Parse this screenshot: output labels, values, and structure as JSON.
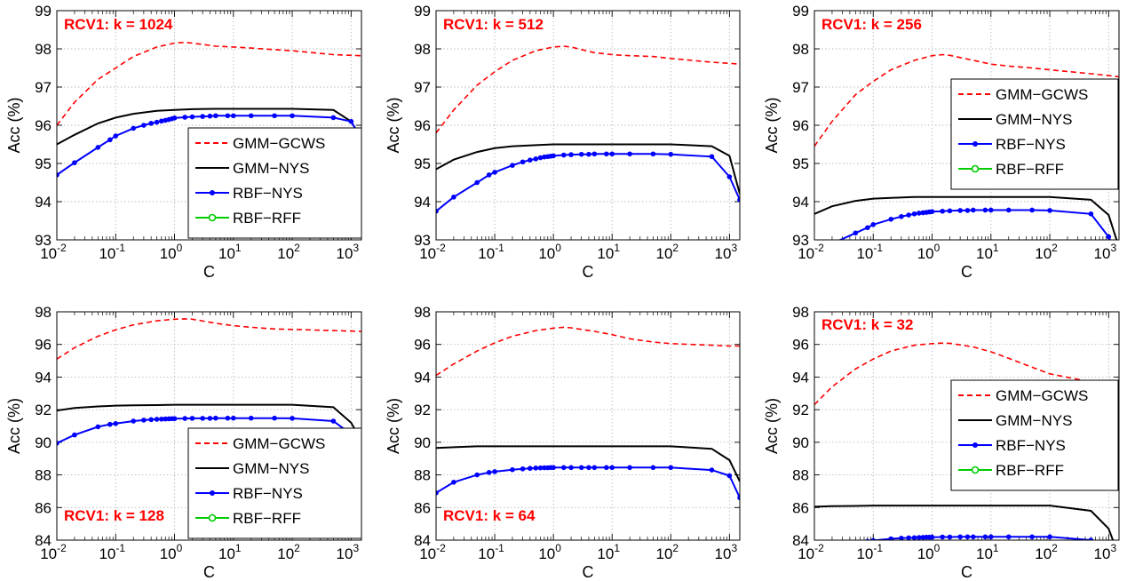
{
  "xlabel": "C",
  "ylabel": "Acc (%)",
  "x_ticks": [
    "-2",
    "-1",
    "0",
    "1",
    "2",
    "3"
  ],
  "x_tick_base": "10",
  "series_styles": [
    {
      "name": "GMM−GCWS",
      "color": "#ff0000",
      "dash": "dashed",
      "marker": "none"
    },
    {
      "name": "GMM−NYS",
      "color": "#000000",
      "dash": "solid",
      "marker": "none"
    },
    {
      "name": "RBF−NYS",
      "color": "#0000ff",
      "dash": "solid",
      "marker": "dot"
    },
    {
      "name": "RBF−RFF",
      "color": "#00cc00",
      "dash": "solid",
      "marker": "circle"
    }
  ],
  "chart_data": [
    {
      "type": "line",
      "title": "RCV1: k = 1024",
      "xlabel": "C",
      "ylabel": "Acc (%)",
      "xscale": "log",
      "xlim": [
        0.01,
        1500
      ],
      "ylim": [
        93,
        99
      ],
      "yticks": [
        93,
        94,
        95,
        96,
        97,
        98,
        99
      ],
      "legend": "lower-right",
      "grid": true,
      "series": [
        {
          "name": "GMM−GCWS",
          "x": [
            0.01,
            0.02,
            0.05,
            0.1,
            0.2,
            0.5,
            1,
            1.5,
            2,
            5,
            10,
            20,
            50,
            100,
            500,
            1000,
            1500
          ],
          "y": [
            96.0,
            96.6,
            97.2,
            97.5,
            97.8,
            98.05,
            98.15,
            98.17,
            98.15,
            98.07,
            98.05,
            98.02,
            97.98,
            97.95,
            97.85,
            97.83,
            97.82
          ]
        },
        {
          "name": "GMM−NYS",
          "x": [
            0.01,
            0.02,
            0.05,
            0.1,
            0.2,
            0.5,
            1,
            2,
            5,
            10,
            20,
            50,
            100,
            500,
            1000,
            1500
          ],
          "y": [
            95.5,
            95.75,
            96.05,
            96.2,
            96.3,
            96.38,
            96.4,
            96.42,
            96.43,
            96.43,
            96.43,
            96.43,
            96.43,
            96.4,
            96.1,
            95.65
          ]
        },
        {
          "name": "RBF−NYS",
          "x": [
            0.01,
            0.02,
            0.05,
            0.08,
            0.1,
            0.2,
            0.3,
            0.4,
            0.5,
            0.6,
            0.7,
            0.8,
            0.9,
            1,
            1.5,
            2,
            3,
            4,
            5,
            8,
            10,
            20,
            50,
            100,
            500,
            1000,
            1500
          ],
          "y": [
            94.7,
            95.02,
            95.42,
            95.62,
            95.72,
            95.92,
            96.0,
            96.05,
            96.08,
            96.11,
            96.13,
            96.15,
            96.17,
            96.19,
            96.21,
            96.22,
            96.23,
            96.24,
            96.25,
            96.25,
            96.25,
            96.25,
            96.25,
            96.25,
            96.2,
            96.1,
            95.65
          ]
        },
        {
          "name": "RBF−RFF",
          "x": [],
          "y": []
        }
      ]
    },
    {
      "type": "line",
      "title": "RCV1: k = 512",
      "xlabel": "C",
      "ylabel": "Acc (%)",
      "xscale": "log",
      "xlim": [
        0.01,
        1500
      ],
      "ylim": [
        93,
        99
      ],
      "yticks": [
        93,
        94,
        95,
        96,
        97,
        98,
        99
      ],
      "legend": "none",
      "grid": true,
      "series": [
        {
          "name": "GMM−GCWS",
          "x": [
            0.01,
            0.02,
            0.05,
            0.1,
            0.2,
            0.5,
            1,
            1.5,
            2,
            5,
            10,
            20,
            50,
            100,
            500,
            1000,
            1500
          ],
          "y": [
            95.8,
            96.4,
            97.05,
            97.4,
            97.7,
            97.95,
            98.05,
            98.07,
            98.05,
            97.9,
            97.85,
            97.82,
            97.8,
            97.75,
            97.65,
            97.62,
            97.6
          ]
        },
        {
          "name": "GMM−NYS",
          "x": [
            0.01,
            0.02,
            0.05,
            0.1,
            0.2,
            0.5,
            1,
            2,
            5,
            10,
            20,
            50,
            100,
            500,
            1000,
            1500
          ],
          "y": [
            94.85,
            95.1,
            95.3,
            95.4,
            95.45,
            95.48,
            95.5,
            95.5,
            95.5,
            95.5,
            95.5,
            95.5,
            95.5,
            95.45,
            95.2,
            94.2
          ]
        },
        {
          "name": "RBF−NYS",
          "x": [
            0.01,
            0.02,
            0.05,
            0.08,
            0.1,
            0.2,
            0.3,
            0.4,
            0.5,
            0.6,
            0.7,
            0.8,
            0.9,
            1,
            1.5,
            2,
            3,
            4,
            5,
            8,
            10,
            20,
            50,
            100,
            500,
            1000,
            1500
          ],
          "y": [
            93.75,
            94.12,
            94.5,
            94.7,
            94.77,
            94.95,
            95.04,
            95.09,
            95.12,
            95.15,
            95.17,
            95.18,
            95.19,
            95.2,
            95.22,
            95.23,
            95.24,
            95.24,
            95.25,
            95.25,
            95.25,
            95.25,
            95.25,
            95.24,
            95.18,
            94.65,
            94.05
          ]
        },
        {
          "name": "RBF−RFF",
          "x": [],
          "y": []
        }
      ]
    },
    {
      "type": "line",
      "title": "RCV1: k = 256",
      "xlabel": "C",
      "ylabel": "Acc (%)",
      "xscale": "log",
      "xlim": [
        0.01,
        1500
      ],
      "ylim": [
        93,
        99
      ],
      "yticks": [
        93,
        94,
        95,
        96,
        97,
        98,
        99
      ],
      "legend": "upper-right",
      "grid": true,
      "series": [
        {
          "name": "GMM−GCWS",
          "x": [
            0.01,
            0.02,
            0.05,
            0.1,
            0.2,
            0.5,
            1,
            1.5,
            2,
            5,
            10,
            20,
            50,
            100,
            500,
            1000,
            1500
          ],
          "y": [
            95.45,
            96.1,
            96.8,
            97.15,
            97.45,
            97.7,
            97.82,
            97.85,
            97.83,
            97.7,
            97.6,
            97.55,
            97.5,
            97.45,
            97.35,
            97.3,
            97.27
          ]
        },
        {
          "name": "GMM−NYS",
          "x": [
            0.01,
            0.02,
            0.05,
            0.1,
            0.2,
            0.5,
            1,
            2,
            5,
            10,
            20,
            50,
            100,
            500,
            1000,
            1500
          ],
          "y": [
            93.68,
            93.88,
            94.02,
            94.08,
            94.1,
            94.12,
            94.12,
            94.12,
            94.12,
            94.12,
            94.12,
            94.12,
            94.12,
            94.05,
            93.65,
            92.8
          ]
        },
        {
          "name": "RBF−NYS",
          "x": [
            0.01,
            0.02,
            0.05,
            0.08,
            0.1,
            0.2,
            0.3,
            0.4,
            0.5,
            0.6,
            0.7,
            0.8,
            0.9,
            1,
            1.5,
            2,
            3,
            4,
            5,
            8,
            10,
            20,
            50,
            100,
            500,
            1000,
            1500
          ],
          "y": [
            92.7,
            92.9,
            93.18,
            93.32,
            93.4,
            93.54,
            93.61,
            93.65,
            93.68,
            93.7,
            93.71,
            93.72,
            93.73,
            93.74,
            93.75,
            93.76,
            93.77,
            93.77,
            93.78,
            93.78,
            93.78,
            93.78,
            93.78,
            93.77,
            93.68,
            93.08,
            92.5
          ]
        },
        {
          "name": "RBF−RFF",
          "x": [],
          "y": []
        }
      ]
    },
    {
      "type": "line",
      "title": "RCV1: k = 128",
      "xlabel": "C",
      "ylabel": "Acc (%)",
      "xscale": "log",
      "xlim": [
        0.01,
        1500
      ],
      "ylim": [
        84,
        98
      ],
      "yticks": [
        84,
        86,
        88,
        90,
        92,
        94,
        96,
        98
      ],
      "legend": "lower-right",
      "grid": true,
      "series": [
        {
          "name": "GMM−GCWS",
          "x": [
            0.01,
            0.02,
            0.05,
            0.1,
            0.2,
            0.5,
            1,
            1.5,
            2,
            5,
            10,
            20,
            50,
            100,
            500,
            1000,
            1500
          ],
          "y": [
            95.1,
            95.8,
            96.5,
            96.9,
            97.2,
            97.45,
            97.55,
            97.57,
            97.55,
            97.3,
            97.15,
            97.05,
            96.95,
            96.92,
            96.85,
            96.82,
            96.8
          ]
        },
        {
          "name": "GMM−NYS",
          "x": [
            0.01,
            0.02,
            0.05,
            0.1,
            0.2,
            0.5,
            1,
            2,
            5,
            10,
            20,
            50,
            100,
            500,
            1000,
            1500
          ],
          "y": [
            91.95,
            92.1,
            92.2,
            92.25,
            92.27,
            92.28,
            92.3,
            92.3,
            92.3,
            92.3,
            92.3,
            92.3,
            92.3,
            92.15,
            91.2,
            90.1
          ]
        },
        {
          "name": "RBF−NYS",
          "x": [
            0.01,
            0.02,
            0.05,
            0.08,
            0.1,
            0.2,
            0.3,
            0.4,
            0.5,
            0.6,
            0.7,
            0.8,
            0.9,
            1,
            1.5,
            2,
            3,
            4,
            5,
            8,
            10,
            20,
            50,
            100,
            500,
            1000,
            1500
          ],
          "y": [
            89.95,
            90.45,
            90.95,
            91.1,
            91.15,
            91.3,
            91.36,
            91.39,
            91.41,
            91.42,
            91.43,
            91.44,
            91.45,
            91.45,
            91.46,
            91.47,
            91.47,
            91.47,
            91.48,
            91.48,
            91.48,
            91.48,
            91.48,
            91.47,
            91.3,
            90.5,
            90.0
          ]
        },
        {
          "name": "RBF−RFF",
          "x": [],
          "y": []
        }
      ]
    },
    {
      "type": "line",
      "title": "RCV1: k = 64",
      "xlabel": "C",
      "ylabel": "Acc (%)",
      "xscale": "log",
      "xlim": [
        0.01,
        1500
      ],
      "ylim": [
        84,
        98
      ],
      "yticks": [
        84,
        86,
        88,
        90,
        92,
        94,
        96,
        98
      ],
      "legend": "none",
      "grid": true,
      "series": [
        {
          "name": "GMM−GCWS",
          "x": [
            0.01,
            0.02,
            0.05,
            0.1,
            0.2,
            0.5,
            1,
            1.5,
            2,
            5,
            10,
            20,
            50,
            100,
            500,
            1000,
            1500
          ],
          "y": [
            94.1,
            94.8,
            95.6,
            96.1,
            96.5,
            96.85,
            97.0,
            97.05,
            97.02,
            96.8,
            96.6,
            96.35,
            96.15,
            96.05,
            95.95,
            95.9,
            95.9
          ]
        },
        {
          "name": "GMM−NYS",
          "x": [
            0.01,
            0.02,
            0.05,
            0.1,
            0.2,
            0.5,
            1,
            2,
            5,
            10,
            20,
            50,
            100,
            500,
            1000,
            1500
          ],
          "y": [
            89.65,
            89.7,
            89.75,
            89.75,
            89.75,
            89.75,
            89.75,
            89.75,
            89.75,
            89.75,
            89.75,
            89.75,
            89.75,
            89.6,
            88.9,
            87.6
          ]
        },
        {
          "name": "RBF−NYS",
          "x": [
            0.01,
            0.02,
            0.05,
            0.08,
            0.1,
            0.2,
            0.3,
            0.4,
            0.5,
            0.6,
            0.7,
            0.8,
            0.9,
            1,
            1.5,
            2,
            3,
            4,
            5,
            8,
            10,
            20,
            50,
            100,
            500,
            1000,
            1500
          ],
          "y": [
            86.9,
            87.55,
            88.0,
            88.15,
            88.2,
            88.32,
            88.37,
            88.4,
            88.42,
            88.43,
            88.44,
            88.44,
            88.45,
            88.45,
            88.45,
            88.45,
            88.45,
            88.45,
            88.45,
            88.45,
            88.45,
            88.45,
            88.45,
            88.45,
            88.3,
            87.95,
            86.6
          ]
        },
        {
          "name": "RBF−RFF",
          "x": [],
          "y": []
        }
      ]
    },
    {
      "type": "line",
      "title": "RCV1: k = 32",
      "xlabel": "C",
      "ylabel": "Acc (%)",
      "xscale": "log",
      "xlim": [
        0.01,
        1500
      ],
      "ylim": [
        84,
        98
      ],
      "yticks": [
        84,
        86,
        88,
        90,
        92,
        94,
        96,
        98
      ],
      "legend": "upper-right",
      "grid": true,
      "series": [
        {
          "name": "GMM−GCWS",
          "x": [
            0.01,
            0.02,
            0.05,
            0.1,
            0.2,
            0.5,
            1,
            1.5,
            2,
            5,
            10,
            20,
            50,
            100,
            500,
            1000,
            1500
          ],
          "y": [
            92.3,
            93.4,
            94.5,
            95.1,
            95.6,
            95.95,
            96.05,
            96.08,
            96.07,
            95.85,
            95.55,
            95.15,
            94.6,
            94.2,
            93.7,
            93.55,
            93.5
          ]
        },
        {
          "name": "GMM−NYS",
          "x": [
            0.01,
            0.02,
            0.05,
            0.1,
            0.2,
            0.5,
            1,
            2,
            5,
            10,
            20,
            50,
            100,
            500,
            1000,
            1500
          ],
          "y": [
            86.05,
            86.08,
            86.1,
            86.12,
            86.12,
            86.12,
            86.12,
            86.12,
            86.12,
            86.12,
            86.12,
            86.12,
            86.12,
            85.8,
            84.7,
            83.0
          ]
        },
        {
          "name": "RBF−NYS",
          "x": [
            0.01,
            0.02,
            0.05,
            0.08,
            0.1,
            0.2,
            0.3,
            0.4,
            0.5,
            0.6,
            0.7,
            0.8,
            0.9,
            1,
            1.5,
            2,
            3,
            4,
            5,
            8,
            10,
            20,
            50,
            100,
            500,
            1000,
            1500
          ],
          "y": [
            83.2,
            83.5,
            83.8,
            83.93,
            83.98,
            84.08,
            84.12,
            84.14,
            84.15,
            84.16,
            84.17,
            84.18,
            84.18,
            84.18,
            84.19,
            84.19,
            84.2,
            84.2,
            84.2,
            84.2,
            84.2,
            84.2,
            84.2,
            84.2,
            84.0,
            83.5,
            83.0
          ]
        },
        {
          "name": "RBF−RFF",
          "x": [],
          "y": []
        }
      ]
    }
  ]
}
